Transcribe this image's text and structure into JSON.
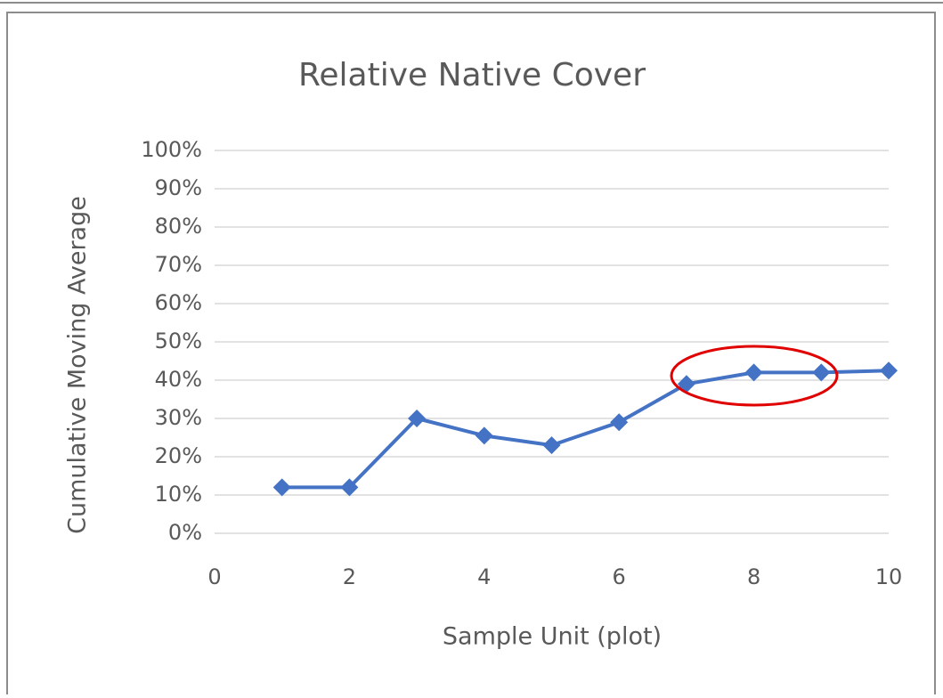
{
  "chart_data": {
    "type": "line",
    "title": "Relative Native Cover",
    "x_label": "Sample Unit (plot)",
    "y_label": "Cumulative Moving Average",
    "x": [
      1,
      2,
      3,
      4,
      5,
      6,
      7,
      8,
      9,
      10
    ],
    "series": [
      {
        "name": "Relative Native Cover",
        "color": "#4472c4",
        "values": [
          12,
          12,
          30,
          25.5,
          23,
          29,
          39,
          42,
          42,
          42.5
        ]
      }
    ],
    "xlim": [
      0,
      10
    ],
    "xticks": [
      0,
      2,
      4,
      6,
      8,
      10
    ],
    "ylim": [
      0,
      100
    ],
    "yticks": [
      {
        "value": 0,
        "label": "0%"
      },
      {
        "value": 10,
        "label": "10%"
      },
      {
        "value": 20,
        "label": "20%"
      },
      {
        "value": 30,
        "label": "30%"
      },
      {
        "value": 40,
        "label": "40%"
      },
      {
        "value": 50,
        "label": "50%"
      },
      {
        "value": 60,
        "label": "60%"
      },
      {
        "value": 70,
        "label": "70%"
      },
      {
        "value": 80,
        "label": "80%"
      },
      {
        "value": 90,
        "label": "90%"
      },
      {
        "value": 100,
        "label": "100%"
      }
    ],
    "grid": true
  }
}
